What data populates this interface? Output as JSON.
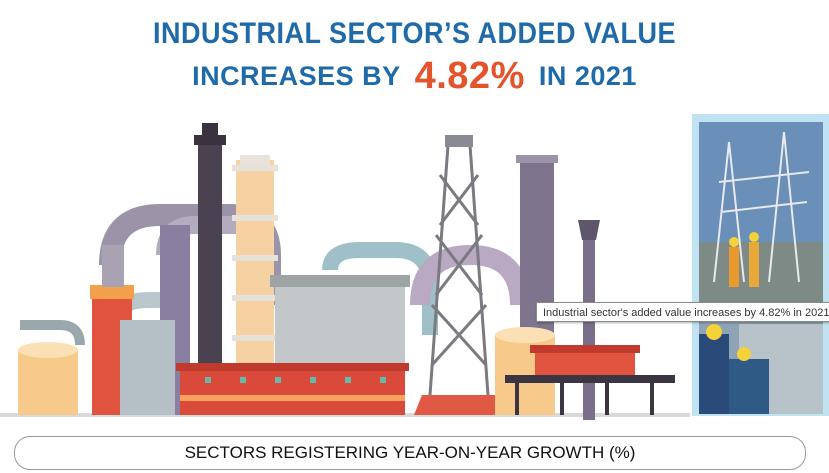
{
  "title": {
    "line1": "INDUSTRIAL SECTOR’S ADDED VALUE",
    "line2_prefix": "INCREASES BY",
    "highlight": "4.82%",
    "line2_suffix": "IN 2021"
  },
  "tooltip": "Industrial sector's added value increases by 4.82% in 2021",
  "sectors_heading": "SECTORS REGISTERING YEAR-ON-YEAR GROWTH (%)",
  "colors": {
    "title_blue": "#1f6aa8",
    "highlight_orange": "#e5532b",
    "panel_blue": "#bfe3f2"
  },
  "icons": [
    "factory-illustration",
    "power-station-photo",
    "workers-photo"
  ]
}
